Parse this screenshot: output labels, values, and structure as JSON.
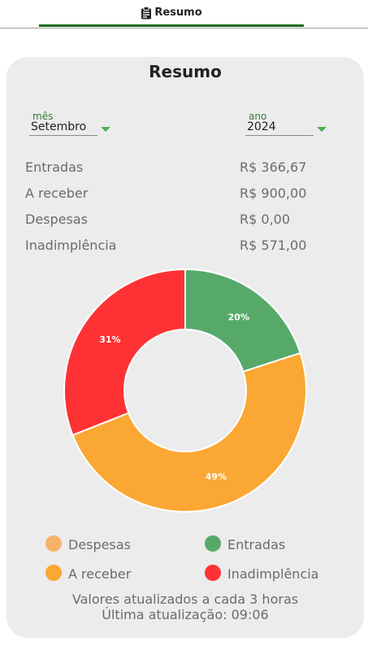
{
  "tab": {
    "label": "Resumo",
    "icon": "clipboard-icon"
  },
  "card": {
    "title": "Resumo"
  },
  "filters": {
    "month": {
      "label": "mês",
      "value": "Setembro"
    },
    "year": {
      "label": "ano",
      "value": "2024"
    }
  },
  "summary": [
    {
      "label": "Entradas",
      "value": "R$ 366,67"
    },
    {
      "label": "A receber",
      "value": "R$ 900,00"
    },
    {
      "label": "Despesas",
      "value": "R$ 0,00"
    },
    {
      "label": "Inadimplência",
      "value": "R$ 571,00"
    }
  ],
  "chart_data": {
    "type": "pie",
    "donut": true,
    "categories": [
      "Despesas",
      "Entradas",
      "A receber",
      "Inadimplência"
    ],
    "values": [
      0,
      20,
      49,
      31
    ],
    "labels": [
      "",
      "20%",
      "49%",
      "31%"
    ],
    "colors": [
      "#f6b26b",
      "#57a96a",
      "#fba733",
      "#fe3235"
    ],
    "legend_position": "bottom"
  },
  "legend": [
    {
      "label": "Despesas",
      "color": "#f6b26b"
    },
    {
      "label": "Entradas",
      "color": "#57a96a"
    },
    {
      "label": "A receber",
      "color": "#fba733"
    },
    {
      "label": "Inadimplência",
      "color": "#fe3235"
    }
  ],
  "footer": {
    "line1": "Valores atualizados a cada 3 horas",
    "line2": "Última atualização: 09:06"
  }
}
